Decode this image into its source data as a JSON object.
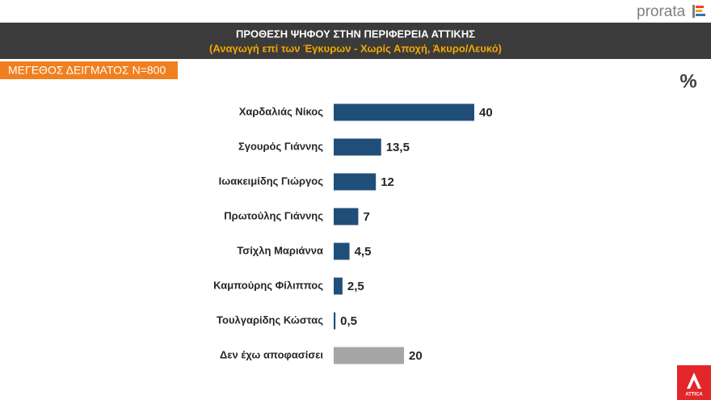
{
  "branding": {
    "top": "prorata",
    "bottom": "ATTICA"
  },
  "chart_data": {
    "type": "bar",
    "orientation": "horizontal",
    "title": "ΠΡΟΘΕΣΗ ΨΗΦΟΥ ΣΤΗΝ ΠΕΡΙΦΕΡΕΙΑ ΑΤΤΙΚΗΣ",
    "subtitle": "(Αναγωγή επί των Έγκυρων - Χωρίς Αποχή, Άκυρο/Λευκό)",
    "annotations": [
      "ΜΕΓΕΘΟΣ ΔΕΙΓΜΑΤΟΣ Ν=800",
      "%"
    ],
    "categories": [
      "Χαρδαλιάς Νίκος",
      "Σγουρός Γιάννης",
      "Ιωακειμίδης Γιώργος",
      "Πρωτούλης Γιάννης",
      "Τσίχλη Μαριάννα",
      "Καμπούρης Φίλιππος",
      "Τουλγαρίδης Κώστας",
      "Δεν έχω αποφασίσει"
    ],
    "values": [
      40,
      13.5,
      12,
      7,
      4.5,
      2.5,
      0.5,
      20
    ],
    "value_labels": [
      "40",
      "13,5",
      "12",
      "7",
      "4,5",
      "2,5",
      "0,5",
      "20"
    ],
    "colors": [
      "#1f4e79",
      "#1f4e79",
      "#1f4e79",
      "#1f4e79",
      "#1f4e79",
      "#1f4e79",
      "#1f4e79",
      "#a6a6a6"
    ]
  }
}
